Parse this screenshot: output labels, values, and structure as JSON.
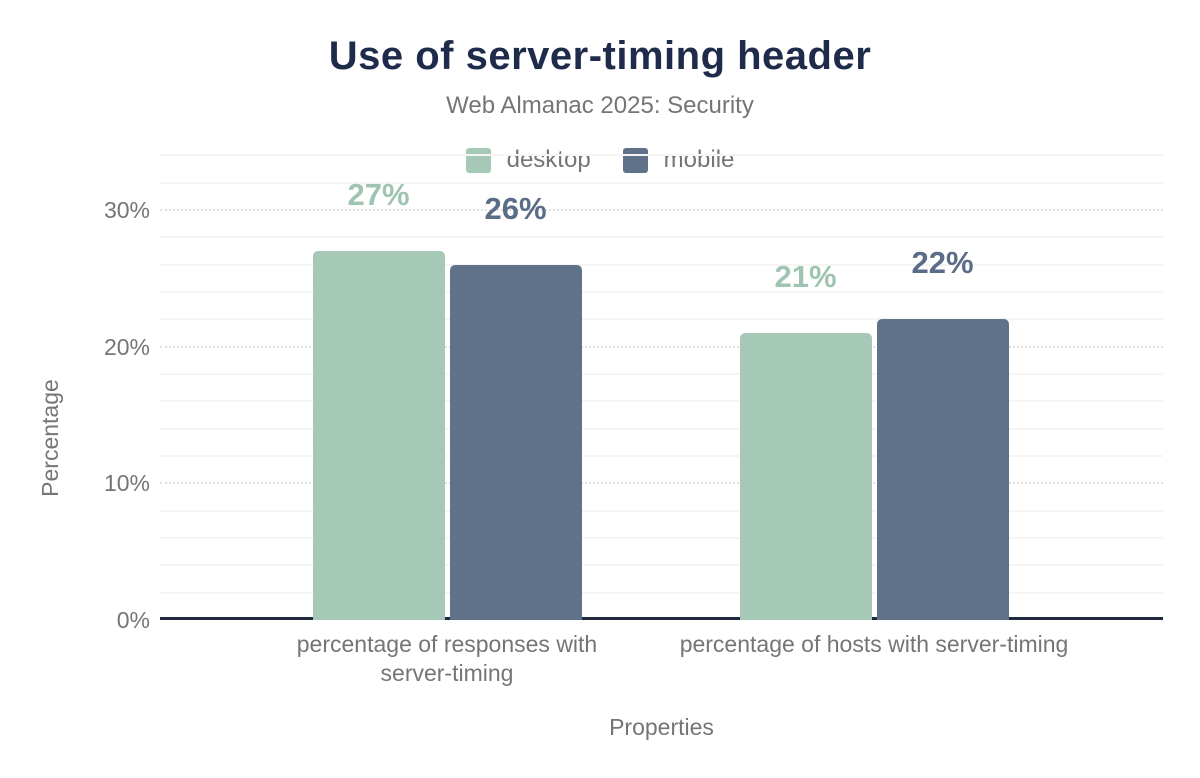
{
  "chart_data": {
    "type": "bar",
    "title": "Use of server-timing header",
    "subtitle": "Web Almanac 2025: Security",
    "categories": [
      "percentage of responses with server-timing",
      "percentage of hosts with server-timing"
    ],
    "series": [
      {
        "name": "desktop",
        "values": [
          27,
          21
        ],
        "value_labels": [
          "27%",
          "21%"
        ],
        "color": "#a5c8b7",
        "label_color": "#9fc4b1"
      },
      {
        "name": "mobile",
        "values": [
          26,
          22
        ],
        "value_labels": [
          "26%",
          "22%"
        ],
        "color": "#60718a",
        "label_color": "#5a6c87"
      }
    ],
    "xlabel": "Properties",
    "ylabel": "Percentage",
    "yticks": [
      0,
      10,
      20,
      30
    ],
    "ytick_labels": [
      "0%",
      "10%",
      "20%",
      "30%"
    ],
    "ylim": [
      0,
      34
    ],
    "grid": {
      "major_step": 10,
      "minor_step": 2,
      "minor_max": 34
    },
    "legend_position": "top",
    "colors": {
      "title_navy": "#1f2b4a",
      "axis_line_navy": "#1f2a3e",
      "muted_text_gray": "#757575",
      "gridline_major": "#e0e0e0",
      "gridline_minor": "#f5f5f5",
      "background": "#ffffff"
    }
  }
}
